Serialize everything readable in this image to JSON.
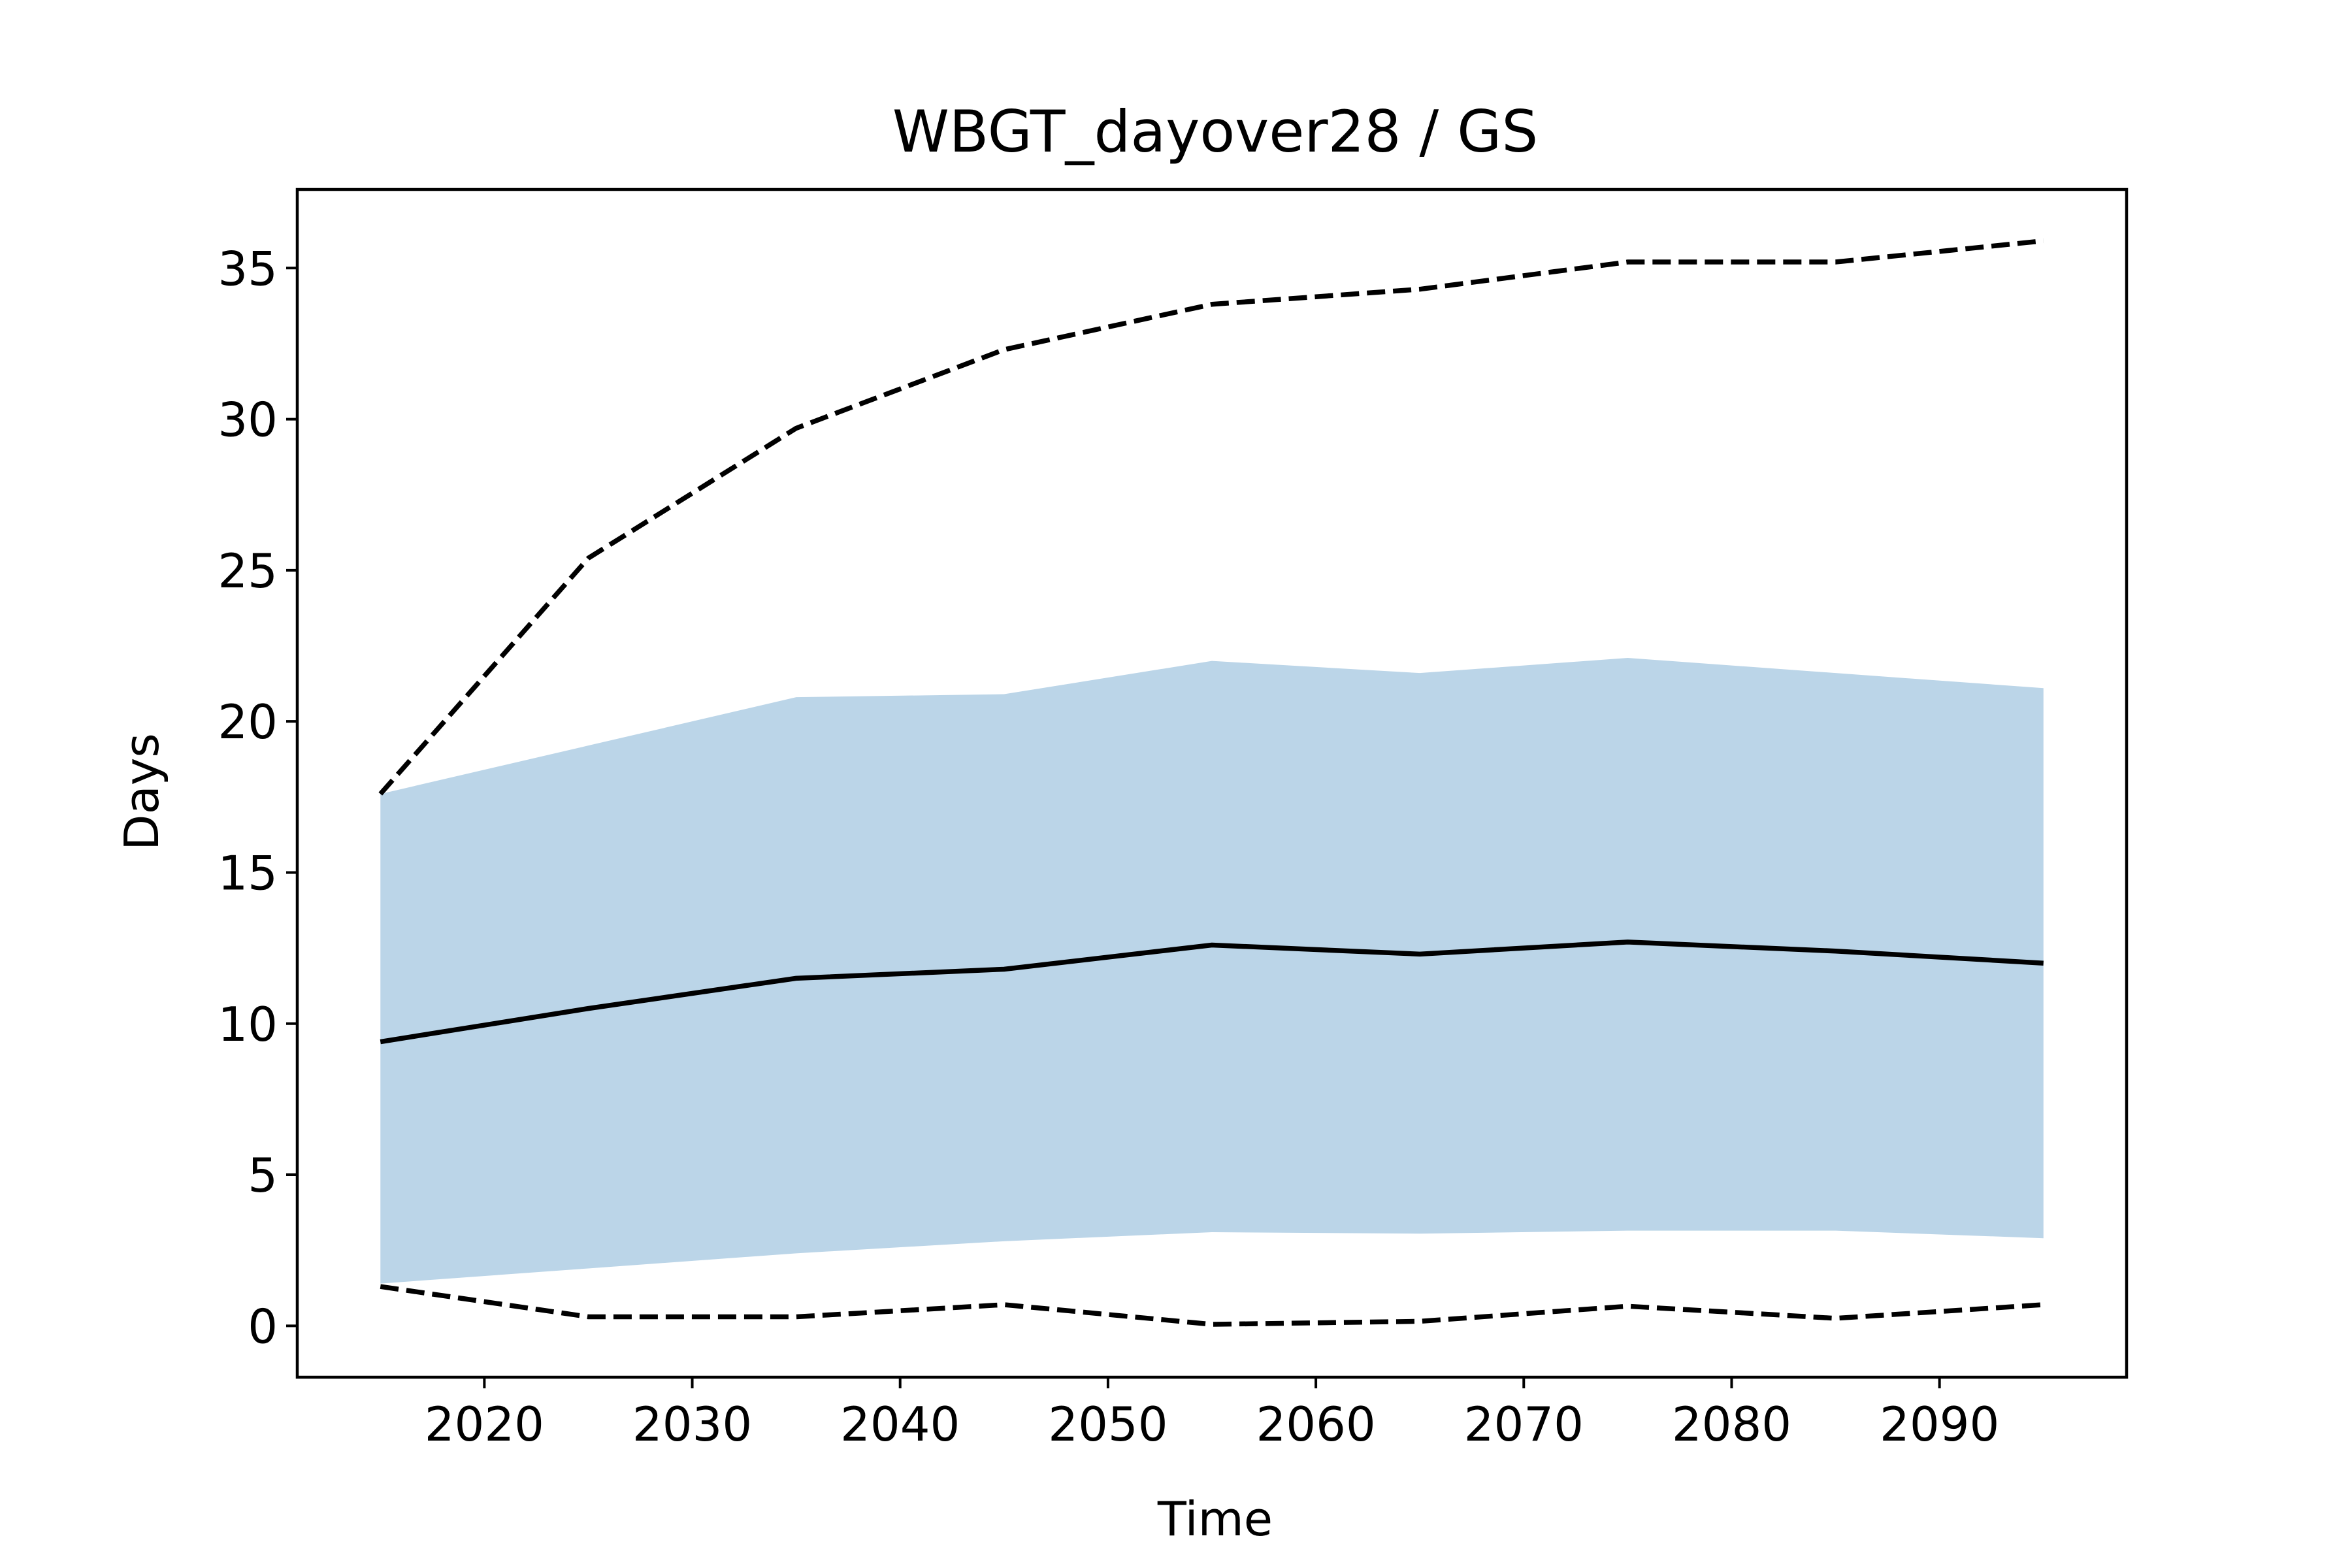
{
  "chart_data": {
    "type": "line",
    "title": "WBGT_dayover28 / GS",
    "xlabel": "Time",
    "ylabel": "Days",
    "xlim": [
      2011,
      2099
    ],
    "ylim": [
      -1.7,
      37.6
    ],
    "xticks": [
      2020,
      2030,
      2040,
      2050,
      2060,
      2070,
      2080,
      2090
    ],
    "yticks": [
      0,
      5,
      10,
      15,
      20,
      25,
      30,
      35
    ],
    "grid": false,
    "legend": "none",
    "x": [
      2015,
      2025,
      2035,
      2045,
      2055,
      2065,
      2075,
      2085,
      2095
    ],
    "series": [
      {
        "role": "median",
        "style": "solid",
        "color": "#000000",
        "values": [
          9.4,
          10.5,
          11.5,
          11.8,
          12.6,
          12.3,
          12.7,
          12.4,
          12.0
        ]
      },
      {
        "role": "max",
        "style": "dashed",
        "color": "#000000",
        "values": [
          17.6,
          25.4,
          29.7,
          32.3,
          33.8,
          34.3,
          35.2,
          35.2,
          35.9
        ]
      },
      {
        "role": "min",
        "style": "dashed",
        "color": "#000000",
        "values": [
          1.3,
          0.3,
          0.3,
          0.7,
          0.05,
          0.15,
          0.65,
          0.25,
          0.7
        ]
      }
    ],
    "band": {
      "color": "#bbd5e8",
      "upper": [
        17.6,
        19.2,
        20.8,
        20.9,
        22.0,
        21.6,
        22.1,
        21.6,
        21.1
      ],
      "lower": [
        1.4,
        1.9,
        2.4,
        2.8,
        3.1,
        3.05,
        3.15,
        3.15,
        2.9
      ]
    }
  }
}
